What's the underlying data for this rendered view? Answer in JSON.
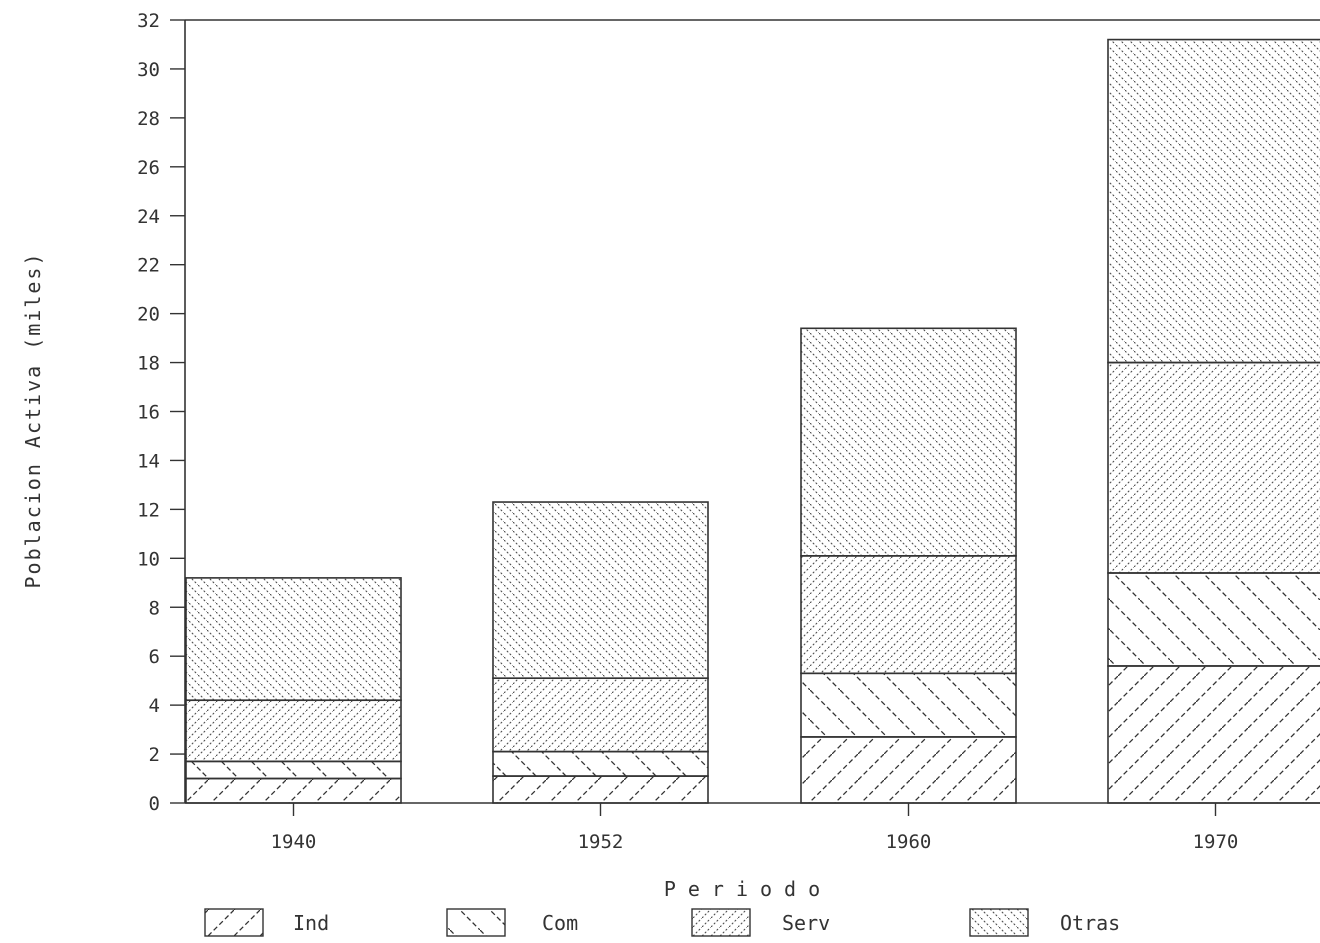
{
  "chart_data": {
    "type": "bar",
    "stacked": true,
    "title": "",
    "xlabel": "Periodo",
    "ylabel": "Poblacion Activa (miles)",
    "categories": [
      "1940",
      "1952",
      "1960",
      "1970"
    ],
    "y_ticks": [
      "0",
      "2",
      "4",
      "6",
      "8",
      "10",
      "12",
      "14",
      "16",
      "18",
      "20",
      "22",
      "24",
      "26",
      "28",
      "30",
      "32"
    ],
    "ylim": [
      0,
      32
    ],
    "series": [
      {
        "name": "Ind",
        "values": [
          1.0,
          1.1,
          2.7,
          5.6
        ]
      },
      {
        "name": "Com",
        "values": [
          0.7,
          1.0,
          2.6,
          3.8
        ]
      },
      {
        "name": "Serv",
        "values": [
          2.5,
          3.0,
          4.8,
          8.6
        ]
      },
      {
        "name": "Otras",
        "values": [
          5.0,
          7.2,
          9.3,
          13.2
        ]
      }
    ],
    "legend_position": "bottom",
    "grid": false,
    "colors": {
      "ink": "#333333",
      "background": "#ffffff"
    }
  }
}
